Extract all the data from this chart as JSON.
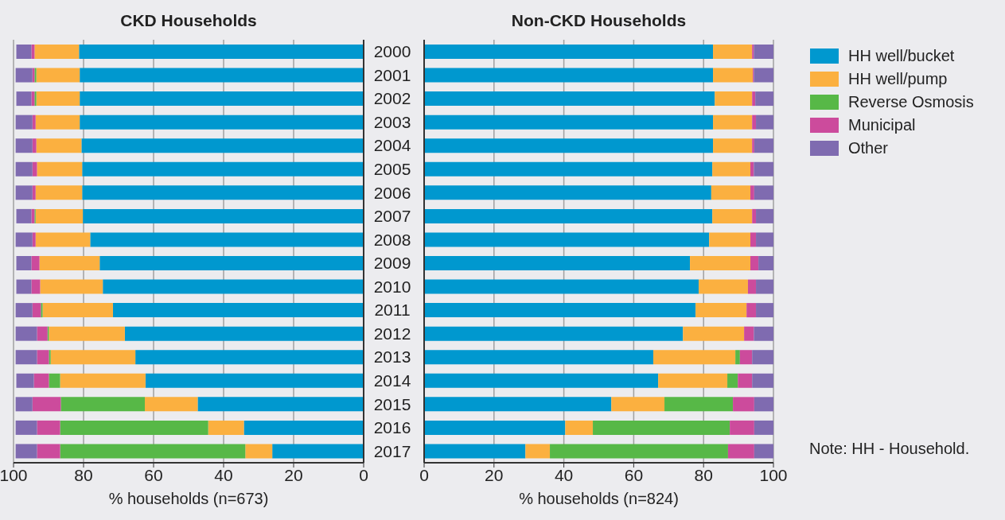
{
  "chart_data": [
    {
      "type": "bar",
      "orientation": "horizontal",
      "stacked": true,
      "title": "CKD Households",
      "xlabel": "% households (n=673)",
      "categories": [
        "2000",
        "2001",
        "2002",
        "2003",
        "2004",
        "2005",
        "2006",
        "2007",
        "2008",
        "2009",
        "2010",
        "2011",
        "2012",
        "2013",
        "2014",
        "2015",
        "2016",
        "2017"
      ],
      "xlim": [
        100,
        0
      ],
      "xticks": [
        100,
        80,
        60,
        40,
        20,
        0
      ],
      "grid": "x",
      "legend": false,
      "series": [
        {
          "color": "#0098cf",
          "values": [
            81.3,
            81.1,
            81.1,
            81.1,
            80.6,
            80.4,
            80.4,
            80.2,
            78.1,
            75.4,
            74.5,
            71.6,
            68.2,
            65.2,
            62.3,
            47.4,
            34.2,
            26.1
          ]
        },
        {
          "color": "#fbb040",
          "values": [
            12.7,
            12.4,
            12.4,
            12.6,
            12.9,
            12.9,
            13.3,
            13.5,
            15.6,
            17.2,
            17.9,
            20.1,
            21.7,
            24.2,
            24.4,
            15.1,
            10.2,
            7.7
          ]
        },
        {
          "color": "#57b847",
          "values": [
            0,
            0.5,
            0.5,
            0,
            0,
            0,
            0,
            0.3,
            0,
            0,
            0,
            0.5,
            0.4,
            0.5,
            3.2,
            24.0,
            42.3,
            52.9
          ]
        },
        {
          "color": "#cc4b9c",
          "values": [
            0.9,
            0.6,
            0.9,
            0.9,
            1.1,
            1.3,
            0.9,
            0.9,
            0.9,
            2.3,
            2.5,
            2.4,
            3.0,
            3.4,
            4.3,
            8.1,
            6.6,
            6.6
          ]
        },
        {
          "color": "#7f6bb0",
          "values": [
            4.3,
            4.8,
            4.3,
            4.8,
            4.8,
            4.8,
            4.8,
            4.3,
            4.8,
            4.3,
            4.3,
            4.8,
            6.1,
            6.1,
            5.0,
            4.8,
            6.1,
            6.1
          ]
        }
      ]
    },
    {
      "type": "bar",
      "orientation": "horizontal",
      "stacked": true,
      "title": "Non-CKD Households",
      "xlabel": "% households (n=824)",
      "categories": [
        "2000",
        "2001",
        "2002",
        "2003",
        "2004",
        "2005",
        "2006",
        "2007",
        "2008",
        "2009",
        "2010",
        "2011",
        "2012",
        "2013",
        "2014",
        "2015",
        "2016",
        "2017"
      ],
      "xlim": [
        0,
        100
      ],
      "xticks": [
        0,
        20,
        40,
        60,
        80,
        100
      ],
      "grid": "x",
      "legend": "right",
      "tick_labels": "x",
      "annotations": [
        "Note: HH - Household."
      ],
      "series": [
        {
          "name": "HH well/bucket",
          "color": "#0098cf",
          "values": [
            82.7,
            82.7,
            83.2,
            82.7,
            82.7,
            82.5,
            82.2,
            82.5,
            81.6,
            76.1,
            78.6,
            77.7,
            74.1,
            65.6,
            67.0,
            53.6,
            40.4,
            29.0
          ]
        },
        {
          "name": "HH well/pump",
          "color": "#fbb040",
          "values": [
            11.2,
            11.4,
            10.7,
            11.2,
            11.2,
            10.9,
            11.2,
            11.4,
            11.8,
            17.3,
            14.1,
            14.6,
            17.5,
            23.5,
            19.8,
            15.2,
            7.9,
            7.0
          ]
        },
        {
          "name": "Reverse Osmosis",
          "color": "#57b847",
          "values": [
            0,
            0,
            0,
            0,
            0,
            0,
            0,
            0,
            0,
            0,
            0,
            0,
            0,
            1.3,
            3.0,
            19.6,
            39.2,
            51.0
          ]
        },
        {
          "name": "Municipal",
          "color": "#cc4b9c",
          "values": [
            0.5,
            0.3,
            0.9,
            1.1,
            0.6,
            1.0,
            1.1,
            1.1,
            1.6,
            2.3,
            2.3,
            2.7,
            2.8,
            3.5,
            4.1,
            6.1,
            7.0,
            7.5
          ]
        },
        {
          "name": "Other",
          "color": "#7f6bb0",
          "values": [
            5.6,
            5.6,
            5.2,
            5.0,
            5.5,
            5.6,
            5.5,
            5.0,
            5.0,
            4.3,
            5.0,
            5.0,
            5.6,
            6.1,
            6.1,
            5.5,
            5.5,
            5.5
          ]
        }
      ]
    }
  ]
}
